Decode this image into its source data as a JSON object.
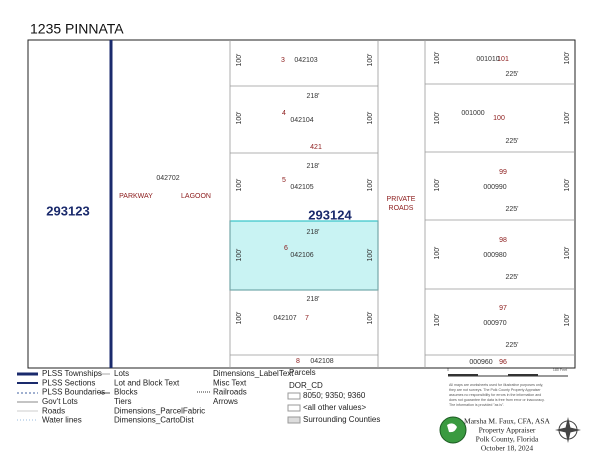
{
  "header": {
    "title": "1235 PINNATA"
  },
  "map": {
    "township_left": "293123",
    "township_right": "293124",
    "block": "421",
    "road_parcel": "042702",
    "road_name_1": "PARKWAY",
    "road_name_2": "LAGOON",
    "private_roads_1": "PRIVATE",
    "private_roads_2": "ROADS",
    "middle_lots": [
      {
        "number": "3",
        "parcel": "042103",
        "depth_left": "100'",
        "depth_right": "100'"
      },
      {
        "width": "218'",
        "number": "4",
        "parcel": "042104",
        "depth_left": "100'",
        "depth_right": "100'"
      },
      {
        "width": "218'",
        "number": "5",
        "parcel": "042105",
        "depth_left": "100'",
        "depth_right": "100'"
      },
      {
        "width": "218'",
        "number": "6",
        "parcel": "042106",
        "depth_left": "100'",
        "depth_right": "100'"
      },
      {
        "width": "218'",
        "number": "7",
        "parcel": "042107",
        "depth_left": "100'",
        "depth_right": "100'"
      },
      {
        "number": "8",
        "parcel": "042108"
      }
    ],
    "right_lots": [
      {
        "number": "101",
        "parcel": "001010",
        "width": "225'",
        "depth_left": "100'",
        "depth_right": "100'"
      },
      {
        "number": "100",
        "parcel": "001000",
        "width": "225'",
        "depth_left": "100'",
        "depth_right": "100'"
      },
      {
        "number": "99",
        "parcel": "000990",
        "width": "225'",
        "depth_left": "100'",
        "depth_right": "100'"
      },
      {
        "number": "98",
        "parcel": "000980",
        "width": "225'",
        "depth_left": "100'",
        "depth_right": "100'"
      },
      {
        "number": "97",
        "parcel": "000970",
        "width": "225'",
        "depth_left": "100'",
        "depth_right": "100'"
      },
      {
        "number": "96",
        "parcel": "000960"
      }
    ]
  },
  "legend": {
    "column_1": [
      "PLSS Townships",
      "PLSS Sections",
      "PLSS Boundaries",
      "Gov't Lots",
      "Roads",
      "Water lines"
    ],
    "column_2": [
      "Lots",
      "Lot and Block Text",
      "Blocks",
      "Tiers",
      "Dimensions_ParcelFabric",
      "Dimensions_CartoDist"
    ],
    "column_3": [
      "Dimensions_LabelText",
      "Misc Text",
      "Railroads",
      "Arrows"
    ],
    "parcels_title": "Parcels",
    "dor_title": "DOR_CD",
    "parcels": [
      "8050; 9350; 9360",
      "<all other values>",
      "Surrounding Counties"
    ]
  },
  "scale": {
    "start": "0",
    "end": "180 Feet"
  },
  "disclaimer": [
    "All maps are worksheets used for illustrative purposes only,",
    "they are not surveys. The Polk County Property Appraiser",
    "assumes no responsibility for errors in the information and",
    "does not guarantee the data is free from error or inaccuracy.",
    "The information is provided \"as is\"."
  ],
  "footer": {
    "name": "Marsha M. Faux, CFA, ASA",
    "office": "Property Appraiser",
    "county": "Polk County, Florida",
    "date": "October 18, 2024"
  }
}
